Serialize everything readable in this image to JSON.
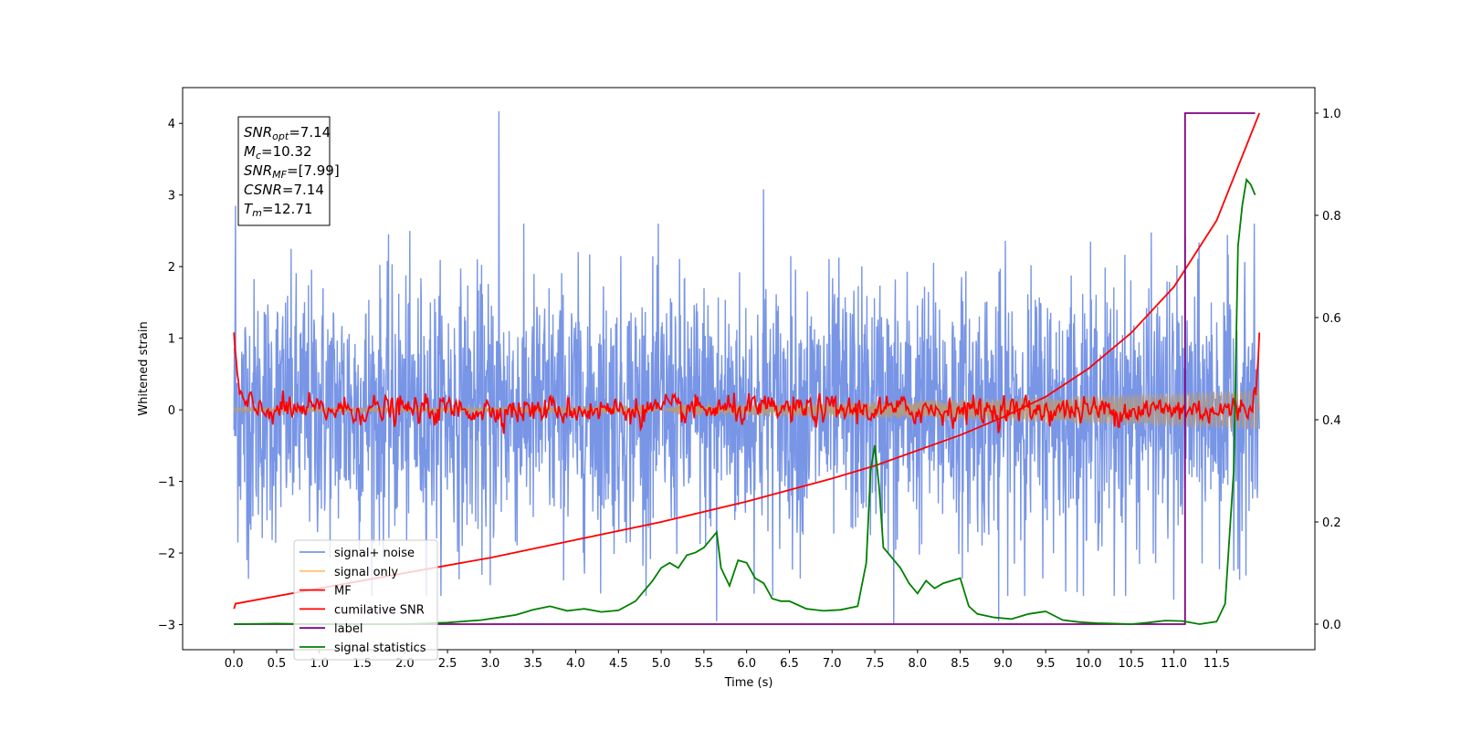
{
  "chart_data": {
    "type": "line",
    "xlabel": "Time (s)",
    "ylabel": "Whitened strain",
    "xlim": [
      -0.6,
      12.65
    ],
    "ylim": [
      -3.35,
      4.5
    ],
    "y2lim": [
      -0.05,
      1.05
    ],
    "xticks": [
      0.0,
      0.5,
      1.0,
      1.5,
      2.0,
      2.5,
      3.0,
      3.5,
      4.0,
      4.5,
      5.0,
      5.5,
      6.0,
      6.5,
      7.0,
      7.5,
      8.0,
      8.5,
      9.0,
      9.5,
      10.0,
      10.5,
      11.0,
      11.5
    ],
    "xtick_labels": [
      "0.0",
      "0.5",
      "1.0",
      "1.5",
      "2.0",
      "2.5",
      "3.0",
      "3.5",
      "4.0",
      "4.5",
      "5.0",
      "5.5",
      "6.0",
      "6.5",
      "7.0",
      "7.5",
      "8.0",
      "8.5",
      "9.0",
      "9.5",
      "10.0",
      "10.5",
      "11.0",
      "11.5"
    ],
    "yticks": [
      -3,
      -2,
      -1,
      0,
      1,
      2,
      3,
      4
    ],
    "ytick_labels": [
      "−3",
      "−2",
      "−1",
      "0",
      "1",
      "2",
      "3",
      "4"
    ],
    "y2ticks": [
      0.0,
      0.2,
      0.4,
      0.6,
      0.8,
      1.0
    ],
    "y2tick_labels": [
      "0.0",
      "0.2",
      "0.4",
      "0.6",
      "0.8",
      "1.0"
    ],
    "grid": false,
    "legend_position": "lower-left",
    "annotation": {
      "lines": [
        {
          "base": "SNR",
          "sub": "opt",
          "rest": "=7.14"
        },
        {
          "base": "M",
          "sub": "c",
          "rest": "=10.32"
        },
        {
          "base": "SNR",
          "sub": "MF",
          "rest": "=[7.99]"
        },
        {
          "base": "CSNR",
          "sub": "",
          "rest": "=7.14"
        },
        {
          "base": "T",
          "sub": "m",
          "rest": "=12.71"
        }
      ]
    },
    "series": [
      {
        "name": "signal+ noise",
        "color": "#7895e6",
        "axis": "left",
        "style": "noise",
        "x_range": [
          0.0,
          12.0
        ],
        "band_std": 0.9,
        "peaks": [
          [
            3.1,
            4.17
          ],
          [
            0.02,
            2.85
          ],
          [
            6.2,
            3.08
          ],
          [
            5.65,
            -2.95
          ],
          [
            7.72,
            -2.98
          ],
          [
            8.95,
            -2.95
          ],
          [
            0.15,
            -2.1
          ],
          [
            11.0,
            -2.65
          ],
          [
            10.3,
            -2.6
          ],
          [
            3.0,
            -2.45
          ]
        ]
      },
      {
        "name": "signal only",
        "color": "#ffc477",
        "axis": "left",
        "style": "chirp",
        "x_range": [
          0.0,
          12.0
        ],
        "amplitude_start": 0.03,
        "amplitude_end": 0.28
      },
      {
        "name": "MF",
        "color": "#ff0000",
        "axis": "left",
        "style": "mf",
        "x_range": [
          0.0,
          12.0
        ],
        "start_value": 1.0,
        "end_value": 1.0,
        "jitter": 0.09
      },
      {
        "name": "cumilative SNR",
        "color": "#ff0000",
        "axis": "right",
        "x": [
          0.0,
          0.02,
          1.0,
          2.0,
          3.0,
          4.0,
          5.0,
          6.0,
          7.0,
          7.5,
          8.0,
          8.5,
          9.0,
          9.5,
          10.0,
          10.5,
          11.0,
          11.5,
          12.0
        ],
        "y": [
          0.03,
          0.04,
          0.07,
          0.1,
          0.13,
          0.165,
          0.2,
          0.24,
          0.285,
          0.31,
          0.34,
          0.37,
          0.405,
          0.445,
          0.5,
          0.57,
          0.66,
          0.79,
          1.0
        ]
      },
      {
        "name": "label",
        "color": "#800080",
        "axis": "right",
        "x": [
          0.0,
          11.13,
          11.13,
          11.2,
          11.95
        ],
        "y": [
          0.0,
          0.0,
          1.0,
          1.0,
          1.0
        ]
      },
      {
        "name": "signal statistics",
        "color": "#008000",
        "axis": "right",
        "x": [
          0.0,
          0.5,
          1.0,
          1.5,
          2.0,
          2.5,
          2.9,
          3.1,
          3.3,
          3.5,
          3.7,
          3.9,
          4.1,
          4.3,
          4.5,
          4.7,
          4.9,
          5.0,
          5.1,
          5.2,
          5.3,
          5.4,
          5.5,
          5.6,
          5.65,
          5.7,
          5.8,
          5.9,
          6.0,
          6.1,
          6.2,
          6.3,
          6.4,
          6.5,
          6.7,
          6.9,
          7.1,
          7.3,
          7.4,
          7.45,
          7.5,
          7.55,
          7.6,
          7.7,
          7.8,
          7.9,
          8.0,
          8.1,
          8.2,
          8.3,
          8.4,
          8.5,
          8.6,
          8.7,
          8.9,
          9.1,
          9.3,
          9.5,
          9.7,
          9.9,
          10.1,
          10.3,
          10.5,
          10.7,
          10.9,
          11.1,
          11.3,
          11.5,
          11.6,
          11.7,
          11.75,
          11.8,
          11.85,
          11.9,
          11.95
        ],
        "y": [
          0.0,
          0.001,
          0.0,
          0.0,
          0.0,
          0.003,
          0.008,
          0.013,
          0.018,
          0.028,
          0.035,
          0.026,
          0.03,
          0.024,
          0.027,
          0.045,
          0.085,
          0.11,
          0.12,
          0.11,
          0.135,
          0.14,
          0.15,
          0.17,
          0.18,
          0.11,
          0.075,
          0.125,
          0.12,
          0.09,
          0.08,
          0.05,
          0.045,
          0.045,
          0.03,
          0.026,
          0.028,
          0.035,
          0.12,
          0.3,
          0.35,
          0.27,
          0.15,
          0.13,
          0.11,
          0.08,
          0.06,
          0.085,
          0.07,
          0.08,
          0.085,
          0.09,
          0.035,
          0.02,
          0.013,
          0.01,
          0.02,
          0.025,
          0.008,
          0.004,
          0.002,
          0.001,
          0.0,
          0.003,
          0.007,
          0.006,
          0.0,
          0.005,
          0.04,
          0.3,
          0.74,
          0.82,
          0.87,
          0.86,
          0.84
        ]
      }
    ]
  }
}
